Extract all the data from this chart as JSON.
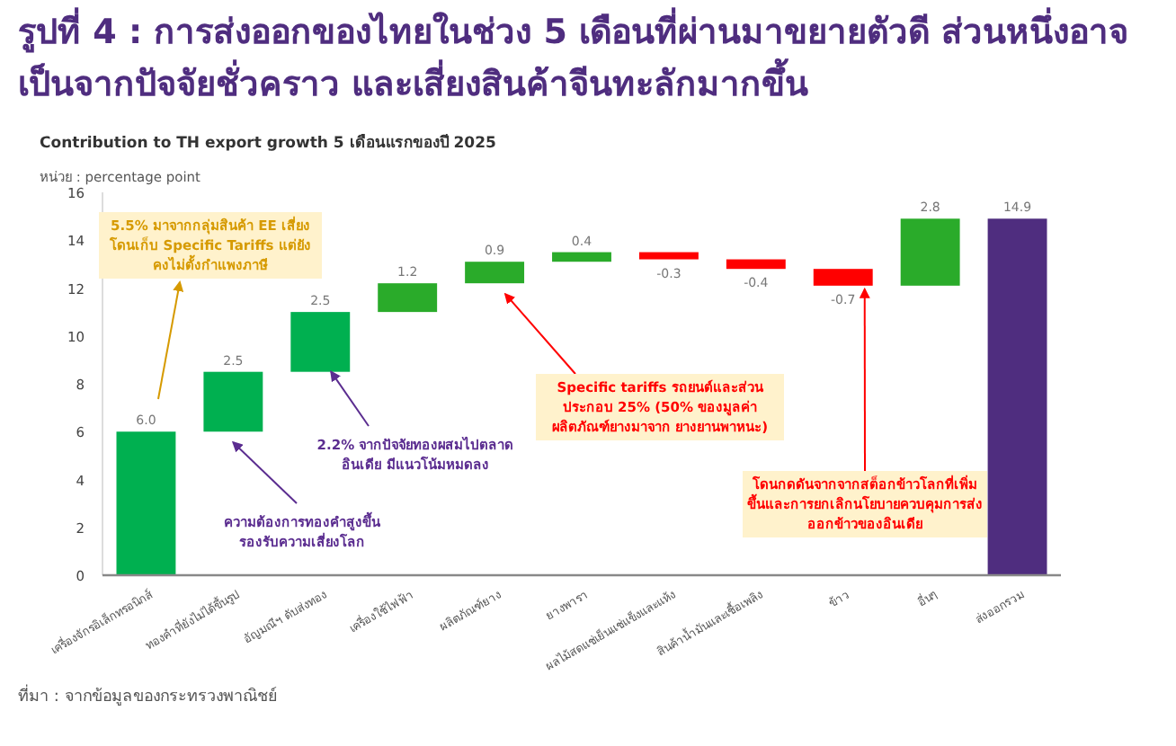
{
  "chart_data": {
    "type": "bar",
    "title": "รูปที่ 4 : การส่งออกของไทยในช่วง 5 เดือนที่ผ่านมาขยายตัวดี ส่วนหนึ่งอาจเป็นจากปัจจัยชั่วคราว และเสี่ยงสินค้าจีนทะลักมากขึ้น",
    "subtitle": "Contribution to TH export growth 5 เดือนแรกของปี 2025",
    "ylabel": "หน่วย : percentage point",
    "categories": [
      "เครื่องจักรอิเล็กทรอนิกส์",
      "ทองคำที่ยังไม่ได้ขึ้นรูป",
      "อัญมณีฯ ดับส่งทอง",
      "เครื่องใช้ไฟฟ้า",
      "ผลิตภัณฑ์ยาง",
      "ยางพารา",
      "ผลไม้สดแช่เย็นแช่แข็งและแห้ง",
      "สินค้าน้ำมันและเชื้อเพลิง",
      "ข้าว",
      "อื่นๆ",
      "ส่งออกรวม"
    ],
    "values": [
      6.0,
      2.5,
      2.5,
      1.2,
      0.9,
      0.4,
      -0.3,
      -0.4,
      -0.7,
      2.8,
      14.9
    ],
    "base": [
      0,
      6.0,
      8.5,
      11.0,
      12.2,
      13.1,
      13.5,
      13.2,
      12.8,
      12.1,
      0
    ],
    "colors": [
      "#00b050",
      "#00b050",
      "#00b050",
      "#2aab2a",
      "#2aab2a",
      "#2aab2a",
      "#ff0000",
      "#ff0000",
      "#ff0000",
      "#2aab2a",
      "#4f2d7f"
    ],
    "value_labels": [
      "6.0",
      "2.5",
      "2.5",
      "1.2",
      "0.9",
      "0.4",
      "-0.3",
      "-0.4",
      "-0.7",
      "2.8",
      "14.9"
    ],
    "ylim": [
      0,
      16
    ],
    "yticks": [
      0,
      2,
      4,
      6,
      8,
      10,
      12,
      14,
      16
    ],
    "annotations": [
      "5.5% มาจากกลุ่มสินค้า EE เสี่ยงโดนเก็บ Specific Tariffs แต่ยังคงไม่ตั้งกำแพงภาษี",
      {
        "text": "2.2% จากปัจจัยทองผสมไปตลาดอินเดีย มีแนวโน้มหมดลง",
        "x": "อัญมณีฯ ดับส่งทอง",
        "y": 8.5
      },
      {
        "text": "ความต้องการทองคำสูงขึ้น รองรับความเสี่ยงโลก",
        "x": "ทองคำที่ยังไม่ได้ขึ้นรูป",
        "y": 6.0
      },
      {
        "text": "Specific tariffs รถยนต์และส่วนประกอบ 25% (50% ของมูลค่าผลิตภัณฑ์ยางมาจาก ยางยานพาหนะ)",
        "x": "ผลิตภัณฑ์ยาง",
        "y": 12.2
      },
      {
        "text": "โดนกดดันจากจากสต็อกข้าวโลกที่เพิ่มขึ้นและการยกเลิกนโยบายควบคุมการส่งออกข้าวของอินเดีย",
        "x": "ข้าว",
        "y": 12.1
      },
      "ที่มา : จากข้อมูลของกระทรวงพาณิชย์"
    ]
  }
}
